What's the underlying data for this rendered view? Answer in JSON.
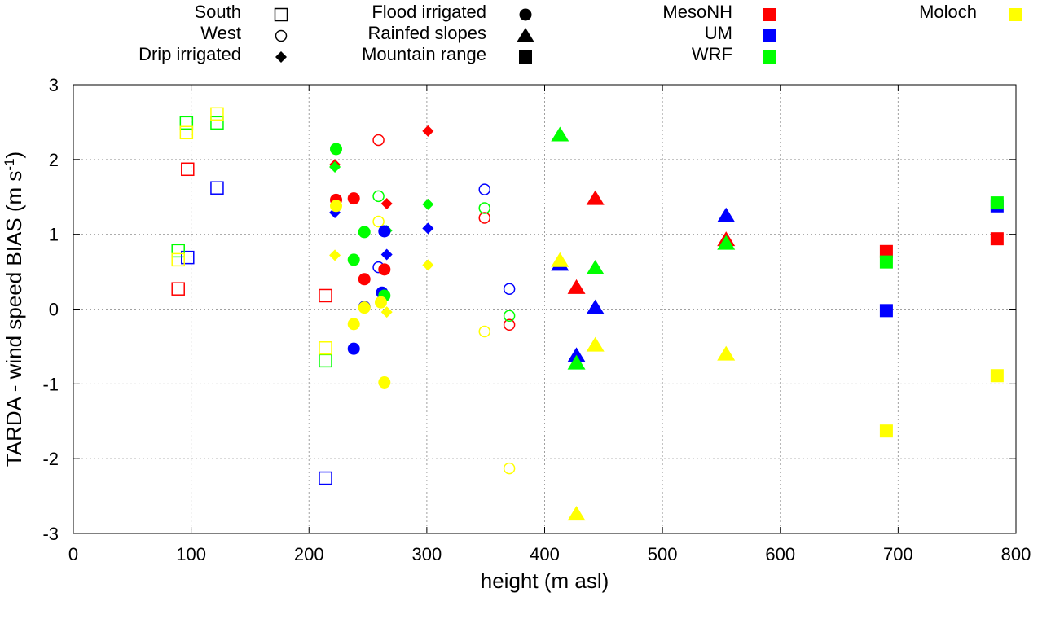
{
  "chart_data": {
    "type": "scatter",
    "xlabel": "height (m asl)",
    "ylabel": {
      "main": "TARDA - wind speed BIAS (m s",
      "superscript": "-1",
      "end": ")"
    },
    "xlim": [
      0,
      800
    ],
    "ylim": [
      -3,
      3
    ],
    "x_ticks": [
      0,
      100,
      200,
      300,
      400,
      500,
      600,
      700,
      800
    ],
    "y_ticks": [
      -3,
      -2,
      -1,
      0,
      1,
      2,
      3
    ],
    "grid": true,
    "legend_position": "top",
    "shape_legend": [
      {
        "label": "South",
        "marker": "open-square"
      },
      {
        "label": "West",
        "marker": "open-circle"
      },
      {
        "label": "Drip irrigated",
        "marker": "filled-diamond"
      },
      {
        "label": "Flood irrigated",
        "marker": "filled-circle"
      },
      {
        "label": "Rainfed slopes",
        "marker": "filled-triangle"
      },
      {
        "label": "Mountain range",
        "marker": "filled-square"
      }
    ],
    "color_legend": [
      {
        "label": "MesoNH",
        "color": "#ff0000"
      },
      {
        "label": "UM",
        "color": "#0000ff"
      },
      {
        "label": "WRF",
        "color": "#00ff00"
      },
      {
        "label": "Moloch",
        "color": "#ffff00"
      }
    ],
    "points": [
      {
        "x": 89,
        "y": 0.27,
        "marker": "open-square",
        "model": "MesoNH"
      },
      {
        "x": 97,
        "y": 1.87,
        "marker": "open-square",
        "model": "MesoNH"
      },
      {
        "x": 214,
        "y": 0.18,
        "marker": "open-square",
        "model": "MesoNH"
      },
      {
        "x": 97,
        "y": 0.69,
        "marker": "open-square",
        "model": "UM"
      },
      {
        "x": 122,
        "y": 1.62,
        "marker": "open-square",
        "model": "UM"
      },
      {
        "x": 214,
        "y": -2.26,
        "marker": "open-square",
        "model": "UM"
      },
      {
        "x": 89,
        "y": 0.78,
        "marker": "open-square",
        "model": "WRF"
      },
      {
        "x": 96,
        "y": 2.49,
        "marker": "open-square",
        "model": "WRF"
      },
      {
        "x": 122,
        "y": 2.49,
        "marker": "open-square",
        "model": "WRF"
      },
      {
        "x": 214,
        "y": -0.69,
        "marker": "open-square",
        "model": "WRF"
      },
      {
        "x": 89,
        "y": 0.66,
        "marker": "open-square",
        "model": "Moloch"
      },
      {
        "x": 96,
        "y": 2.36,
        "marker": "open-square",
        "model": "Moloch"
      },
      {
        "x": 122,
        "y": 2.61,
        "marker": "open-square",
        "model": "Moloch"
      },
      {
        "x": 214,
        "y": -0.52,
        "marker": "open-square",
        "model": "Moloch"
      },
      {
        "x": 259,
        "y": 2.26,
        "marker": "open-circle",
        "model": "MesoNH"
      },
      {
        "x": 349,
        "y": 1.22,
        "marker": "open-circle",
        "model": "MesoNH"
      },
      {
        "x": 370,
        "y": -0.21,
        "marker": "open-circle",
        "model": "MesoNH"
      },
      {
        "x": 259,
        "y": 0.56,
        "marker": "open-circle",
        "model": "UM"
      },
      {
        "x": 349,
        "y": 1.6,
        "marker": "open-circle",
        "model": "UM"
      },
      {
        "x": 370,
        "y": 0.27,
        "marker": "open-circle",
        "model": "UM"
      },
      {
        "x": 259,
        "y": 1.51,
        "marker": "open-circle",
        "model": "WRF"
      },
      {
        "x": 349,
        "y": 1.35,
        "marker": "open-circle",
        "model": "WRF"
      },
      {
        "x": 370,
        "y": -0.09,
        "marker": "open-circle",
        "model": "WRF"
      },
      {
        "x": 259,
        "y": 1.17,
        "marker": "open-circle",
        "model": "Moloch"
      },
      {
        "x": 349,
        "y": -0.3,
        "marker": "open-circle",
        "model": "Moloch"
      },
      {
        "x": 370,
        "y": -2.13,
        "marker": "open-circle",
        "model": "Moloch"
      },
      {
        "x": 222,
        "y": 1.93,
        "marker": "filled-diamond",
        "model": "MesoNH"
      },
      {
        "x": 266,
        "y": 1.41,
        "marker": "filled-diamond",
        "model": "MesoNH"
      },
      {
        "x": 301,
        "y": 2.38,
        "marker": "filled-diamond",
        "model": "MesoNH"
      },
      {
        "x": 222,
        "y": 1.29,
        "marker": "filled-diamond",
        "model": "UM"
      },
      {
        "x": 266,
        "y": 0.73,
        "marker": "filled-diamond",
        "model": "UM"
      },
      {
        "x": 301,
        "y": 1.08,
        "marker": "filled-diamond",
        "model": "UM"
      },
      {
        "x": 222,
        "y": 1.9,
        "marker": "filled-diamond",
        "model": "WRF"
      },
      {
        "x": 266,
        "y": 1.05,
        "marker": "filled-diamond",
        "model": "WRF"
      },
      {
        "x": 301,
        "y": 1.4,
        "marker": "filled-diamond",
        "model": "WRF"
      },
      {
        "x": 222,
        "y": 0.72,
        "marker": "filled-diamond",
        "model": "Moloch"
      },
      {
        "x": 266,
        "y": -0.04,
        "marker": "filled-diamond",
        "model": "Moloch"
      },
      {
        "x": 301,
        "y": 0.59,
        "marker": "filled-diamond",
        "model": "Moloch"
      },
      {
        "x": 223,
        "y": 1.46,
        "marker": "filled-circle",
        "model": "MesoNH"
      },
      {
        "x": 238,
        "y": 1.48,
        "marker": "filled-circle",
        "model": "MesoNH"
      },
      {
        "x": 247,
        "y": 0.4,
        "marker": "filled-circle",
        "model": "MesoNH"
      },
      {
        "x": 264,
        "y": 0.53,
        "marker": "filled-circle",
        "model": "MesoNH"
      },
      {
        "x": 238,
        "y": -0.53,
        "marker": "filled-circle",
        "model": "UM"
      },
      {
        "x": 247,
        "y": 0.03,
        "marker": "filled-circle",
        "model": "UM"
      },
      {
        "x": 262,
        "y": 0.22,
        "marker": "filled-circle",
        "model": "UM"
      },
      {
        "x": 264,
        "y": 1.04,
        "marker": "filled-circle",
        "model": "UM"
      },
      {
        "x": 223,
        "y": 2.14,
        "marker": "filled-circle",
        "model": "WRF"
      },
      {
        "x": 238,
        "y": 0.66,
        "marker": "filled-circle",
        "model": "WRF"
      },
      {
        "x": 247,
        "y": 1.03,
        "marker": "filled-circle",
        "model": "WRF"
      },
      {
        "x": 264,
        "y": 0.18,
        "marker": "filled-circle",
        "model": "WRF"
      },
      {
        "x": 223,
        "y": 1.38,
        "marker": "filled-circle",
        "model": "Moloch"
      },
      {
        "x": 238,
        "y": -0.2,
        "marker": "filled-circle",
        "model": "Moloch"
      },
      {
        "x": 247,
        "y": 0.02,
        "marker": "filled-circle",
        "model": "Moloch"
      },
      {
        "x": 261,
        "y": 0.09,
        "marker": "filled-circle",
        "model": "Moloch"
      },
      {
        "x": 264,
        "y": -0.98,
        "marker": "filled-circle",
        "model": "Moloch"
      },
      {
        "x": 427,
        "y": 0.29,
        "marker": "filled-triangle",
        "model": "MesoNH"
      },
      {
        "x": 443,
        "y": 1.48,
        "marker": "filled-triangle",
        "model": "MesoNH"
      },
      {
        "x": 554,
        "y": 0.93,
        "marker": "filled-triangle",
        "model": "MesoNH"
      },
      {
        "x": 413,
        "y": 0.6,
        "marker": "filled-triangle",
        "model": "UM"
      },
      {
        "x": 427,
        "y": -0.62,
        "marker": "filled-triangle",
        "model": "UM"
      },
      {
        "x": 443,
        "y": 0.02,
        "marker": "filled-triangle",
        "model": "UM"
      },
      {
        "x": 554,
        "y": 1.25,
        "marker": "filled-triangle",
        "model": "UM"
      },
      {
        "x": 413,
        "y": 2.33,
        "marker": "filled-triangle",
        "model": "WRF"
      },
      {
        "x": 427,
        "y": -0.72,
        "marker": "filled-triangle",
        "model": "WRF"
      },
      {
        "x": 443,
        "y": 0.55,
        "marker": "filled-triangle",
        "model": "WRF"
      },
      {
        "x": 554,
        "y": 0.88,
        "marker": "filled-triangle",
        "model": "WRF"
      },
      {
        "x": 413,
        "y": 0.65,
        "marker": "filled-triangle",
        "model": "Moloch"
      },
      {
        "x": 427,
        "y": -2.74,
        "marker": "filled-triangle",
        "model": "Moloch"
      },
      {
        "x": 443,
        "y": -0.48,
        "marker": "filled-triangle",
        "model": "Moloch"
      },
      {
        "x": 554,
        "y": -0.6,
        "marker": "filled-triangle",
        "model": "Moloch"
      },
      {
        "x": 690,
        "y": 0.77,
        "marker": "filled-square",
        "model": "MesoNH"
      },
      {
        "x": 784,
        "y": 0.94,
        "marker": "filled-square",
        "model": "MesoNH"
      },
      {
        "x": 690,
        "y": -0.02,
        "marker": "filled-square",
        "model": "UM"
      },
      {
        "x": 784,
        "y": 1.38,
        "marker": "filled-square",
        "model": "UM"
      },
      {
        "x": 690,
        "y": 0.63,
        "marker": "filled-square",
        "model": "WRF"
      },
      {
        "x": 784,
        "y": 1.42,
        "marker": "filled-square",
        "model": "WRF"
      },
      {
        "x": 690,
        "y": -1.63,
        "marker": "filled-square",
        "model": "Moloch"
      },
      {
        "x": 784,
        "y": -0.89,
        "marker": "filled-square",
        "model": "Moloch"
      }
    ]
  }
}
